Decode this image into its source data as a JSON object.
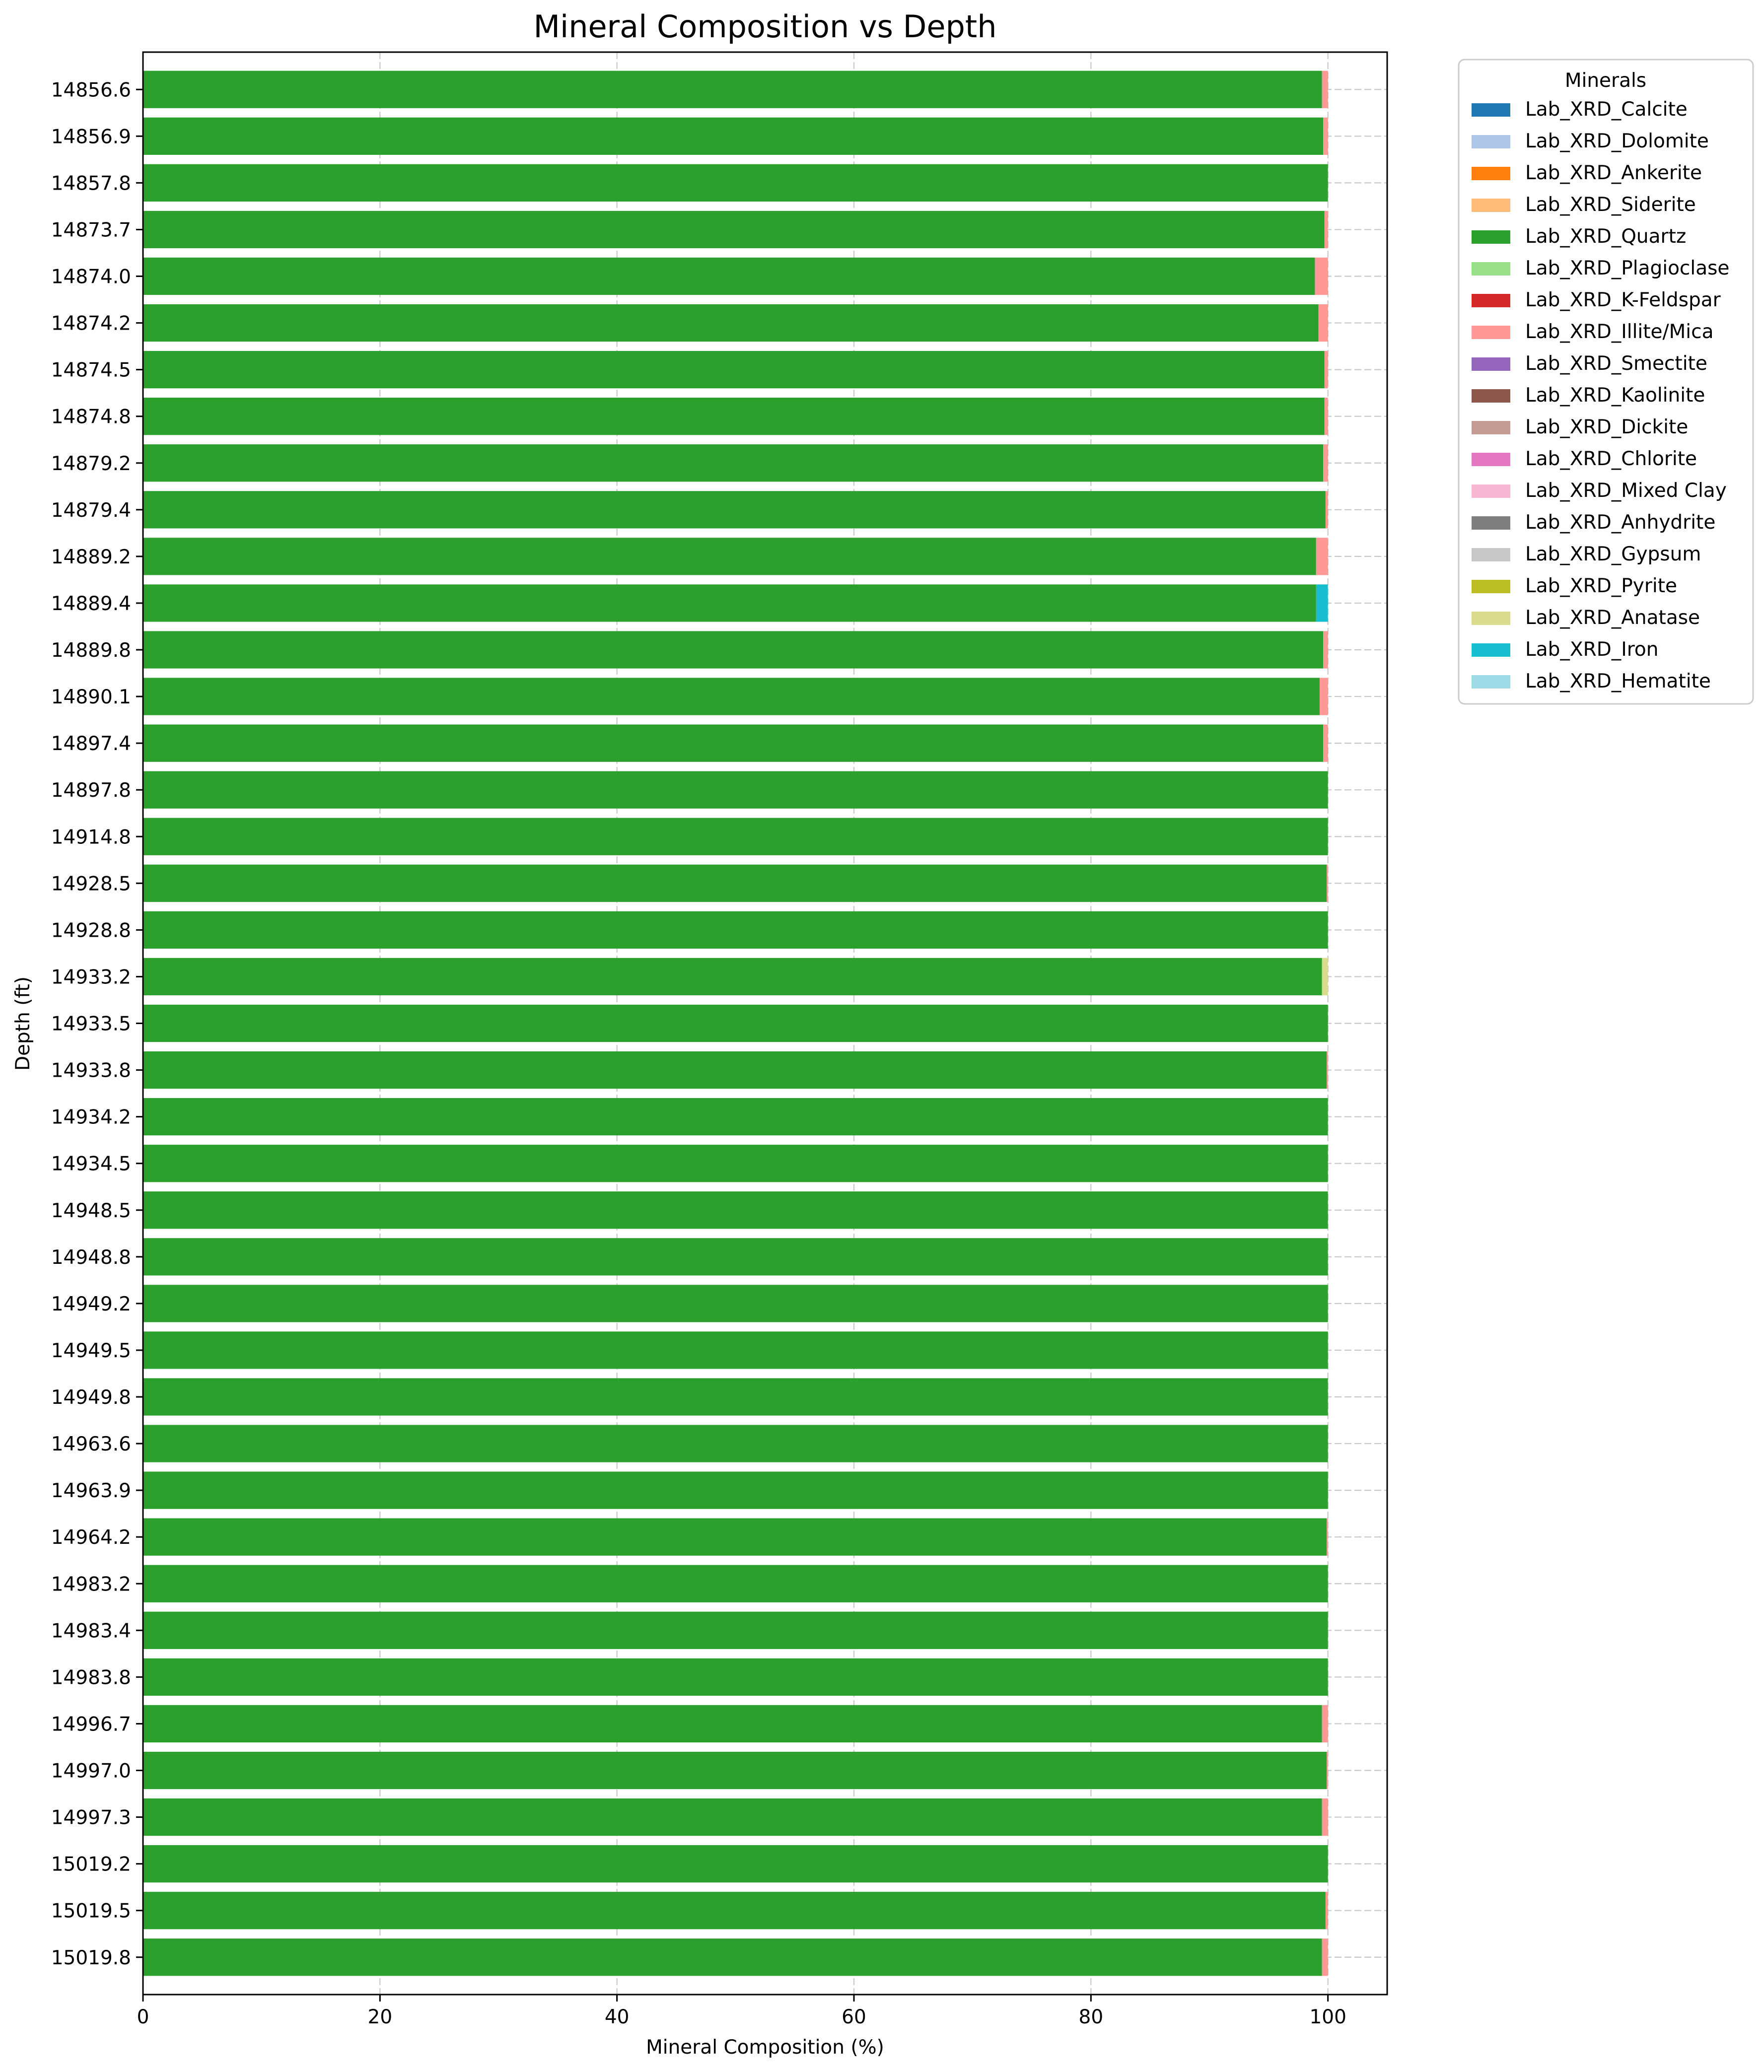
{
  "chart_data": {
    "type": "bar",
    "orientation": "horizontal",
    "stacked": true,
    "title": "Mineral Composition vs Depth",
    "xlabel": "Mineral Composition (%)",
    "ylabel": "Depth (ft)",
    "xlim": [
      0,
      105
    ],
    "xticks": [
      0,
      20,
      40,
      60,
      80,
      100
    ],
    "grid": true,
    "legend_title": "Minerals",
    "legend_position": "outside-top-right",
    "categories": [
      "14856.6",
      "14856.9",
      "14857.8",
      "14873.7",
      "14874.0",
      "14874.2",
      "14874.5",
      "14874.8",
      "14879.2",
      "14879.4",
      "14889.2",
      "14889.4",
      "14889.8",
      "14890.1",
      "14897.4",
      "14897.8",
      "14914.8",
      "14928.5",
      "14928.8",
      "14933.2",
      "14933.5",
      "14933.8",
      "14934.2",
      "14934.5",
      "14948.5",
      "14948.8",
      "14949.2",
      "14949.5",
      "14949.8",
      "14963.6",
      "14963.9",
      "14964.2",
      "14983.2",
      "14983.4",
      "14983.8",
      "14996.7",
      "14997.0",
      "14997.3",
      "15019.2",
      "15019.5",
      "15019.8"
    ],
    "series": [
      {
        "name": "Lab_XRD_Calcite",
        "color": "#1f77b4",
        "values": [
          0,
          0,
          0,
          0,
          0,
          0,
          0,
          0,
          0,
          0,
          0,
          0,
          0,
          0,
          0,
          0,
          0,
          0,
          0,
          0,
          0,
          0,
          0,
          0,
          0,
          0,
          0,
          0,
          0,
          0,
          0,
          0,
          0,
          0,
          0,
          0,
          0,
          0,
          0,
          0,
          0
        ]
      },
      {
        "name": "Lab_XRD_Dolomite",
        "color": "#aec7e8",
        "values": [
          0,
          0,
          0,
          0,
          0,
          0,
          0,
          0,
          0,
          0,
          0,
          0,
          0,
          0,
          0,
          0,
          0,
          0,
          0,
          0,
          0,
          0,
          0,
          0,
          0,
          0,
          0,
          0,
          0,
          0,
          0,
          0,
          0,
          0,
          0,
          0,
          0,
          0,
          0,
          0,
          0
        ]
      },
      {
        "name": "Lab_XRD_Ankerite",
        "color": "#ff7f0e",
        "values": [
          0,
          0,
          0,
          0,
          0,
          0,
          0,
          0,
          0,
          0,
          0,
          0,
          0,
          0,
          0,
          0,
          0,
          0,
          0,
          0,
          0,
          0,
          0,
          0,
          0,
          0,
          0,
          0,
          0,
          0,
          0,
          0,
          0,
          0,
          0,
          0,
          0,
          0,
          0,
          0,
          0
        ]
      },
      {
        "name": "Lab_XRD_Siderite",
        "color": "#ffbb78",
        "values": [
          0,
          0,
          0,
          0,
          0,
          0,
          0,
          0,
          0,
          0,
          0,
          0,
          0,
          0,
          0,
          0,
          0,
          0,
          0,
          0,
          0,
          0,
          0,
          0,
          0,
          0,
          0,
          0,
          0,
          0,
          0,
          0,
          0,
          0,
          0,
          0,
          0,
          0,
          0,
          0,
          0
        ]
      },
      {
        "name": "Lab_XRD_Quartz",
        "color": "#2ca02c",
        "values": [
          99.5,
          99.6,
          100,
          99.7,
          98.9,
          99.2,
          99.7,
          99.7,
          99.6,
          99.8,
          99.0,
          99.0,
          99.6,
          99.3,
          99.6,
          100,
          100,
          99.9,
          100,
          99.5,
          100,
          99.9,
          100,
          100,
          100,
          100,
          100,
          100,
          100,
          100,
          100,
          99.9,
          100,
          100,
          100,
          99.5,
          99.9,
          99.5,
          100,
          99.8,
          99.5
        ]
      },
      {
        "name": "Lab_XRD_Plagioclase",
        "color": "#98df8a",
        "values": [
          0,
          0,
          0,
          0,
          0,
          0,
          0,
          0,
          0,
          0,
          0,
          0,
          0,
          0,
          0,
          0,
          0,
          0,
          0,
          0,
          0,
          0,
          0,
          0,
          0,
          0,
          0,
          0,
          0,
          0,
          0,
          0,
          0,
          0,
          0,
          0,
          0,
          0,
          0,
          0,
          0
        ]
      },
      {
        "name": "Lab_XRD_K-Feldspar",
        "color": "#d62728",
        "values": [
          0,
          0,
          0,
          0,
          0,
          0,
          0,
          0,
          0,
          0,
          0,
          0,
          0,
          0,
          0,
          0,
          0,
          0,
          0,
          0,
          0,
          0,
          0,
          0,
          0,
          0,
          0,
          0,
          0,
          0,
          0,
          0,
          0,
          0,
          0,
          0,
          0,
          0,
          0,
          0,
          0
        ]
      },
      {
        "name": "Lab_XRD_Illite/Mica",
        "color": "#ff9896",
        "values": [
          0.5,
          0.4,
          0,
          0.3,
          1.1,
          0.8,
          0.3,
          0.3,
          0.4,
          0.2,
          1.0,
          0,
          0.4,
          0.7,
          0.4,
          0,
          0,
          0.1,
          0,
          0,
          0,
          0.1,
          0,
          0,
          0,
          0,
          0,
          0,
          0,
          0,
          0,
          0.1,
          0,
          0,
          0,
          0.5,
          0.1,
          0.5,
          0,
          0.2,
          0.5
        ]
      },
      {
        "name": "Lab_XRD_Smectite",
        "color": "#9467bd",
        "values": [
          0,
          0,
          0,
          0,
          0,
          0,
          0,
          0,
          0,
          0,
          0,
          0,
          0,
          0,
          0,
          0,
          0,
          0,
          0,
          0,
          0,
          0,
          0,
          0,
          0,
          0,
          0,
          0,
          0,
          0,
          0,
          0,
          0,
          0,
          0,
          0,
          0,
          0,
          0,
          0,
          0
        ]
      },
      {
        "name": "Lab_XRD_Kaolinite",
        "color": "#8c564b",
        "values": [
          0,
          0,
          0,
          0,
          0,
          0,
          0,
          0,
          0,
          0,
          0,
          0,
          0,
          0,
          0,
          0,
          0,
          0,
          0,
          0,
          0,
          0,
          0,
          0,
          0,
          0,
          0,
          0,
          0,
          0,
          0,
          0,
          0,
          0,
          0,
          0,
          0,
          0,
          0,
          0,
          0
        ]
      },
      {
        "name": "Lab_XRD_Dickite",
        "color": "#c49c94",
        "values": [
          0,
          0,
          0,
          0,
          0,
          0,
          0,
          0,
          0,
          0,
          0,
          0,
          0,
          0,
          0,
          0,
          0,
          0,
          0,
          0,
          0,
          0,
          0,
          0,
          0,
          0,
          0,
          0,
          0,
          0,
          0,
          0,
          0,
          0,
          0,
          0,
          0,
          0,
          0,
          0,
          0
        ]
      },
      {
        "name": "Lab_XRD_Chlorite",
        "color": "#e377c2",
        "values": [
          0,
          0,
          0,
          0,
          0,
          0,
          0,
          0,
          0,
          0,
          0,
          0,
          0,
          0,
          0,
          0,
          0,
          0,
          0,
          0,
          0,
          0,
          0,
          0,
          0,
          0,
          0,
          0,
          0,
          0,
          0,
          0,
          0,
          0,
          0,
          0,
          0,
          0,
          0,
          0,
          0
        ]
      },
      {
        "name": "Lab_XRD_Mixed Clay",
        "color": "#f7b6d2",
        "values": [
          0,
          0,
          0,
          0,
          0,
          0,
          0,
          0,
          0,
          0,
          0,
          0,
          0,
          0,
          0,
          0,
          0,
          0,
          0,
          0,
          0,
          0,
          0,
          0,
          0,
          0,
          0,
          0,
          0,
          0,
          0,
          0,
          0,
          0,
          0,
          0,
          0,
          0,
          0,
          0,
          0
        ]
      },
      {
        "name": "Lab_XRD_Anhydrite",
        "color": "#7f7f7f",
        "values": [
          0,
          0,
          0,
          0,
          0,
          0,
          0,
          0,
          0,
          0,
          0,
          0,
          0,
          0,
          0,
          0,
          0,
          0,
          0,
          0,
          0,
          0,
          0,
          0,
          0,
          0,
          0,
          0,
          0,
          0,
          0,
          0,
          0,
          0,
          0,
          0,
          0,
          0,
          0,
          0,
          0
        ]
      },
      {
        "name": "Lab_XRD_Gypsum",
        "color": "#c7c7c7",
        "values": [
          0,
          0,
          0,
          0,
          0,
          0,
          0,
          0,
          0,
          0,
          0,
          0,
          0,
          0,
          0,
          0,
          0,
          0,
          0,
          0,
          0,
          0,
          0,
          0,
          0,
          0,
          0,
          0,
          0,
          0,
          0,
          0,
          0,
          0,
          0,
          0,
          0,
          0,
          0,
          0,
          0
        ]
      },
      {
        "name": "Lab_XRD_Pyrite",
        "color": "#bcbd22",
        "values": [
          0,
          0,
          0,
          0,
          0,
          0,
          0,
          0,
          0,
          0,
          0,
          0,
          0,
          0,
          0,
          0,
          0,
          0,
          0,
          0,
          0,
          0,
          0,
          0,
          0,
          0,
          0,
          0,
          0,
          0,
          0,
          0,
          0,
          0,
          0,
          0,
          0,
          0,
          0,
          0,
          0
        ]
      },
      {
        "name": "Lab_XRD_Anatase",
        "color": "#dbdb8d",
        "values": [
          0,
          0,
          0,
          0,
          0,
          0,
          0,
          0,
          0,
          0,
          0,
          0,
          0,
          0,
          0,
          0,
          0,
          0,
          0,
          0.5,
          0,
          0,
          0,
          0,
          0,
          0,
          0,
          0,
          0,
          0,
          0,
          0,
          0,
          0,
          0,
          0,
          0,
          0,
          0,
          0,
          0
        ]
      },
      {
        "name": "Lab_XRD_Iron",
        "color": "#17becf",
        "values": [
          0,
          0,
          0,
          0,
          0,
          0,
          0,
          0,
          0,
          0,
          0,
          1.0,
          0,
          0,
          0,
          0,
          0,
          0,
          0,
          0,
          0,
          0,
          0,
          0,
          0,
          0,
          0,
          0,
          0,
          0,
          0,
          0,
          0,
          0,
          0,
          0,
          0,
          0,
          0,
          0,
          0
        ]
      },
      {
        "name": "Lab_XRD_Hematite",
        "color": "#9edae5",
        "values": [
          0,
          0,
          0,
          0,
          0,
          0,
          0,
          0,
          0,
          0,
          0,
          0,
          0,
          0,
          0,
          0,
          0,
          0,
          0,
          0,
          0,
          0,
          0,
          0,
          0,
          0,
          0,
          0,
          0,
          0,
          0,
          0,
          0,
          0,
          0,
          0,
          0,
          0,
          0,
          0,
          0
        ]
      }
    ]
  }
}
